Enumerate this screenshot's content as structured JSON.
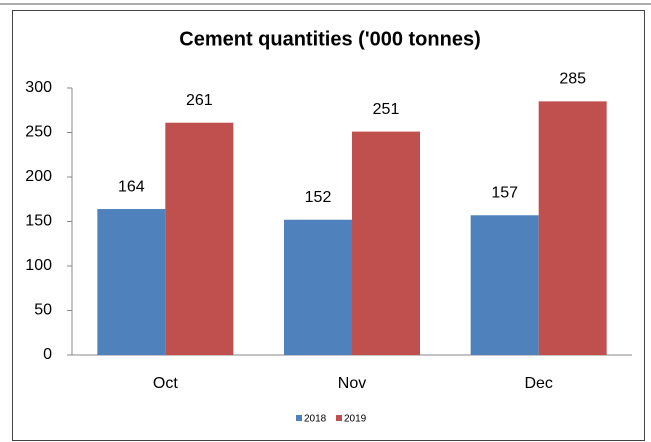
{
  "chart_data": {
    "type": "bar",
    "title": "Cement quantities ('000 tonnes)",
    "categories": [
      "Oct",
      "Nov",
      "Dec"
    ],
    "series": [
      {
        "name": "2018",
        "color": "#4f81bd",
        "values": [
          164,
          152,
          157
        ]
      },
      {
        "name": "2019",
        "color": "#c0504d",
        "values": [
          261,
          251,
          285
        ]
      }
    ],
    "ylim": [
      0,
      300
    ],
    "yticks": [
      0,
      50,
      100,
      150,
      200,
      250,
      300
    ],
    "grid": false,
    "legend": "bottom"
  }
}
